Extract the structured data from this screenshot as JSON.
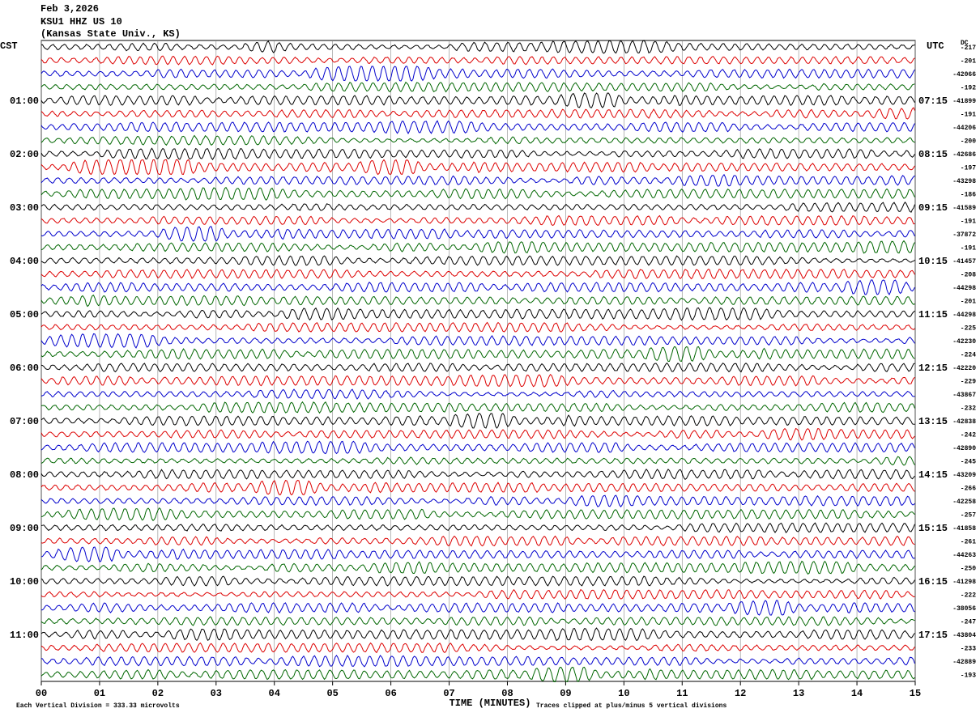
{
  "header": {
    "date": "Feb 3,2026",
    "station": "KSU1 HHZ US 10",
    "location": "(Kansas State Univ., KS)"
  },
  "left_zone": "CST",
  "right_zone": "UTC",
  "dc_title": "DC",
  "left_labels": [
    "01:00",
    "02:00",
    "03:00",
    "04:00",
    "05:00",
    "06:00",
    "07:00",
    "08:00",
    "09:00",
    "10:00",
    "11:00"
  ],
  "right_labels": [
    "07:15",
    "08:15",
    "09:15",
    "10:15",
    "11:15",
    "12:15",
    "13:15",
    "14:15",
    "15:15",
    "16:15",
    "17:15"
  ],
  "dc_values": [
    "-217",
    "-201",
    "-42066",
    "-192",
    "-41899",
    "-191",
    "-44206",
    "-200",
    "-42686",
    "-197",
    "-43298",
    "-186",
    "-41589",
    "-191",
    "-37872",
    "-191",
    "-41457",
    "-208",
    "-44298",
    "-201",
    "-44298",
    "-225",
    "-42230",
    "-224",
    "-42220",
    "-229",
    "-43867",
    "-232",
    "-42838",
    "-242",
    "-42890",
    "-245",
    "-43209",
    "-266",
    "-42258",
    "-257",
    "-41858",
    "-261",
    "-44263",
    "-250",
    "-41298",
    "-222",
    "-38056",
    "-247",
    "-43804",
    "-233",
    "-42889",
    "-193"
  ],
  "x_labels": [
    "00",
    "01",
    "02",
    "03",
    "04",
    "05",
    "06",
    "07",
    "08",
    "09",
    "10",
    "11",
    "12",
    "13",
    "14",
    "15"
  ],
  "footer": {
    "division": "Each Vertical Division =  333.33 microvolts",
    "axis_title": "TIME (MINUTES)",
    "clip_note": "Traces clipped at plus/minus 5 vertical divisions"
  }
}
